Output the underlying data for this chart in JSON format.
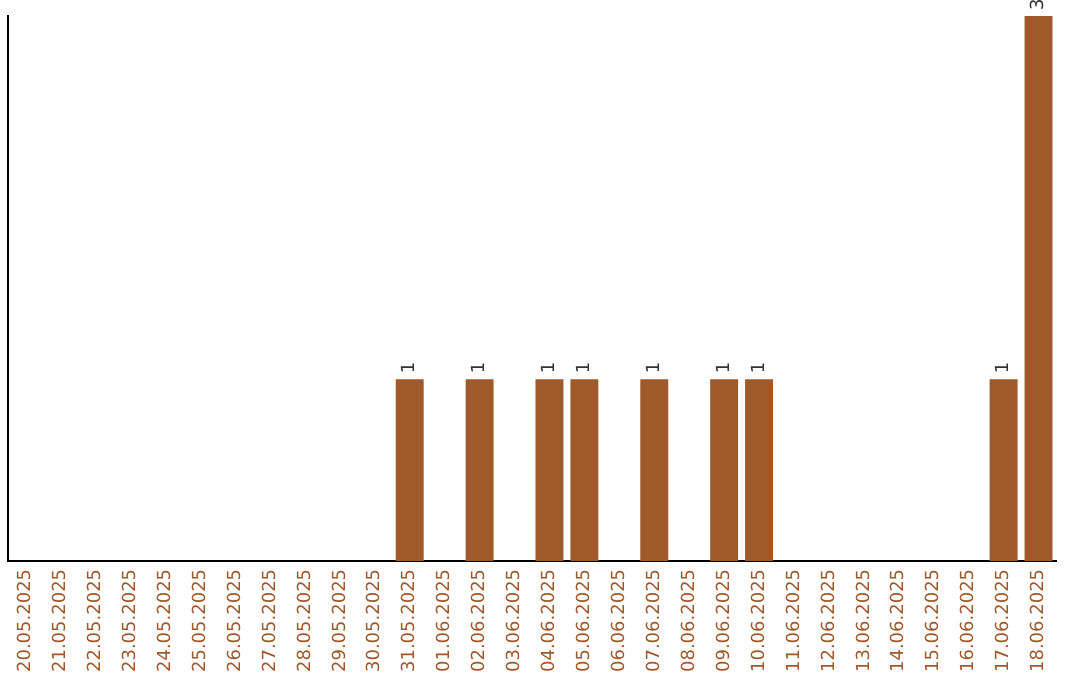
{
  "chart_data": {
    "type": "bar",
    "categories": [
      "20.05.2025",
      "21.05.2025",
      "22.05.2025",
      "23.05.2025",
      "24.05.2025",
      "25.05.2025",
      "26.05.2025",
      "27.05.2025",
      "28.05.2025",
      "29.05.2025",
      "30.05.2025",
      "31.05.2025",
      "01.06.2025",
      "02.06.2025",
      "03.06.2025",
      "04.06.2025",
      "05.06.2025",
      "06.06.2025",
      "07.06.2025",
      "08.06.2025",
      "09.06.2025",
      "10.06.2025",
      "11.06.2025",
      "12.06.2025",
      "13.06.2025",
      "14.06.2025",
      "15.06.2025",
      "16.06.2025",
      "17.06.2025",
      "18.06.2025"
    ],
    "values": [
      0,
      0,
      0,
      0,
      0,
      0,
      0,
      0,
      0,
      0,
      0,
      1,
      0,
      1,
      0,
      1,
      1,
      0,
      1,
      0,
      1,
      1,
      0,
      0,
      0,
      0,
      0,
      0,
      1,
      3
    ],
    "value_labels": [
      null,
      null,
      null,
      null,
      null,
      null,
      null,
      null,
      null,
      null,
      null,
      "1",
      null,
      "1",
      null,
      "1",
      "1",
      null,
      "1",
      null,
      "1",
      "1",
      null,
      null,
      null,
      null,
      null,
      null,
      "1",
      "3"
    ],
    "color": "#a0592a",
    "ylim": [
      0,
      3
    ],
    "tick_labels": "x",
    "grid": false,
    "legend": false
  }
}
